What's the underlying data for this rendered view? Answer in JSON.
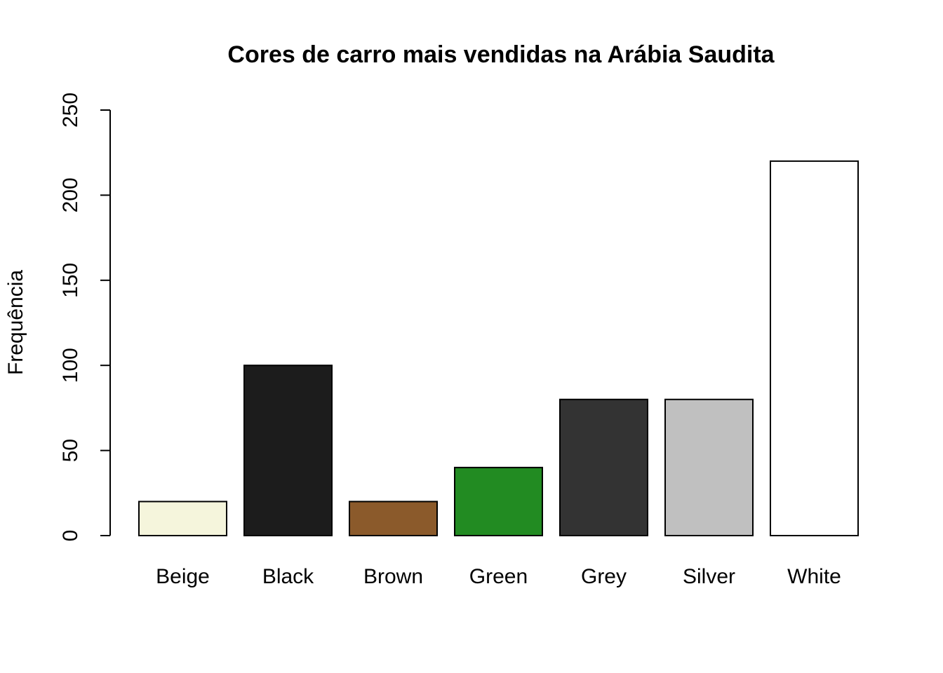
{
  "chart_data": {
    "type": "bar",
    "title": "Cores de carro mais vendidas na Arábia Saudita",
    "y_label": "Frequência",
    "categories": [
      "Beige",
      "Black",
      "Brown",
      "Green",
      "Grey",
      "Silver",
      "White"
    ],
    "values": [
      20,
      100,
      20,
      40,
      80,
      80,
      220
    ],
    "colors": [
      "#f5f5dc",
      "#1c1c1c",
      "#8b5a2b",
      "#228b22",
      "#333333",
      "#c0c0c0",
      "#ffffff"
    ],
    "ylim": [
      0,
      250
    ],
    "yticks": [
      0,
      50,
      100,
      150,
      200,
      250
    ],
    "grid": false
  }
}
